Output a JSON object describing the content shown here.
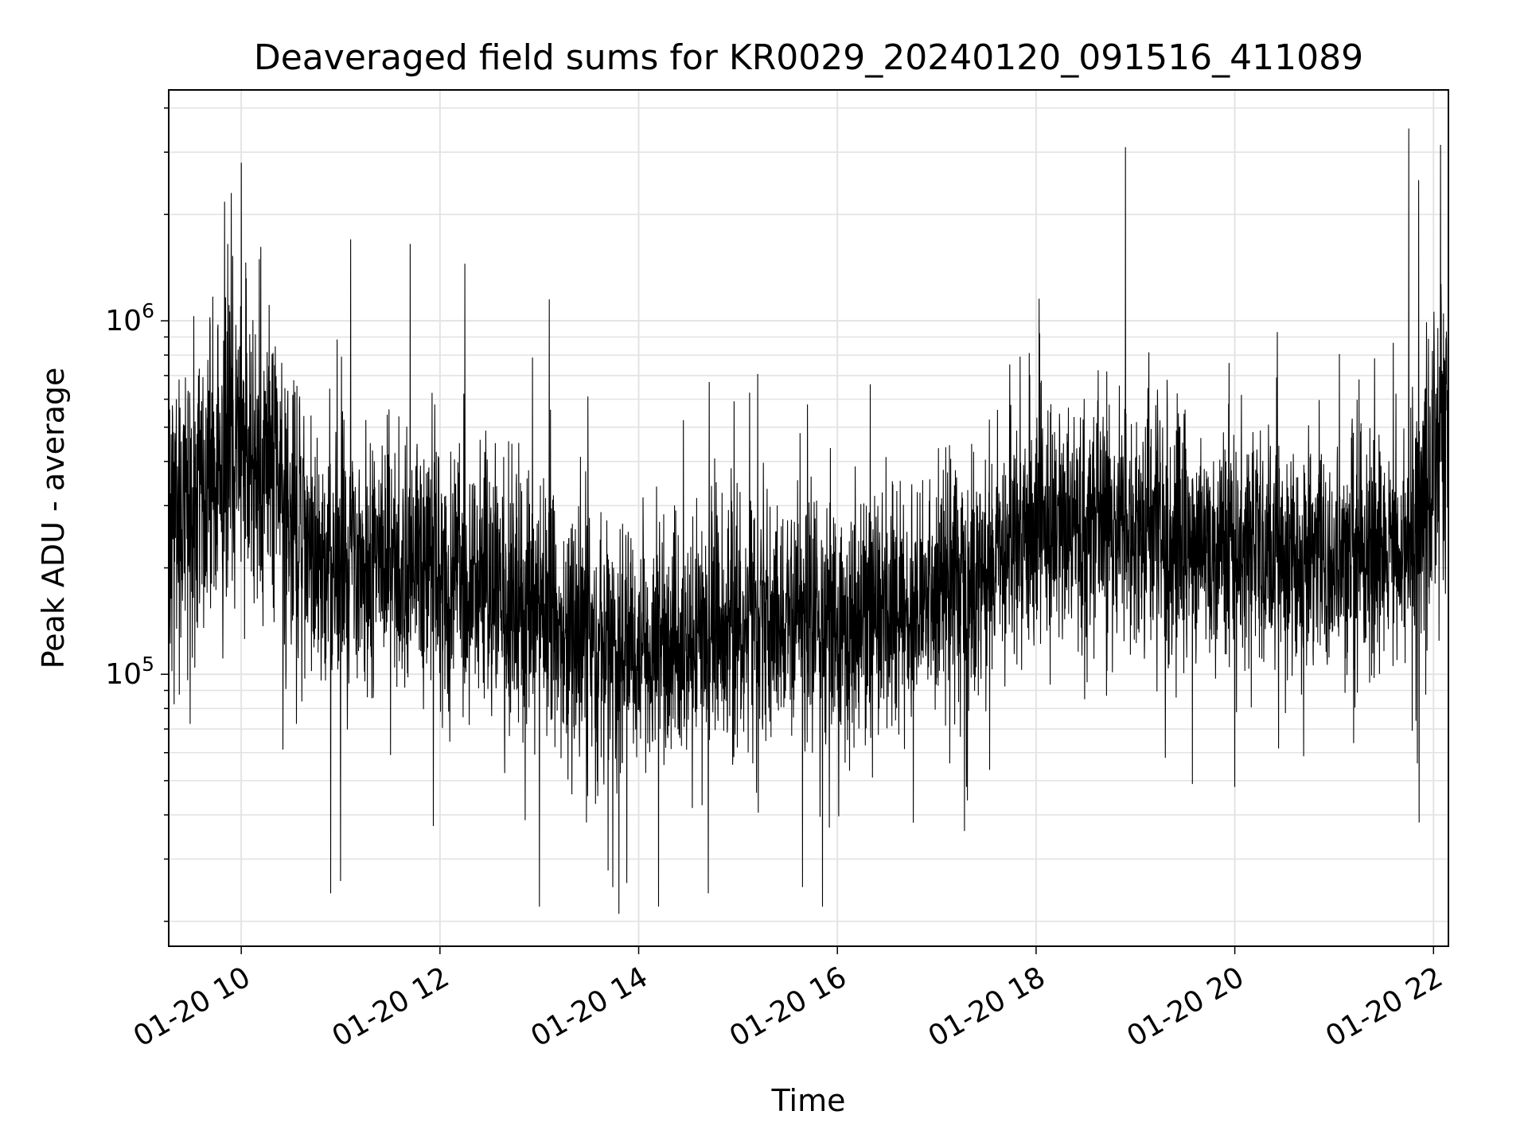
{
  "chart_data": {
    "type": "line",
    "title": "Deaveraged field sums for KR0029_20240120_091516_411089",
    "xlabel": "Time",
    "ylabel": "Peak ADU - average",
    "y_scale": "log",
    "grid": true,
    "legend": "none",
    "line_color": "#000000",
    "x_range_hours": [
      9.27,
      22.15
    ],
    "ylim": [
      17000,
      4500000
    ],
    "x_ticks": [
      {
        "value": 10,
        "label": "01-20 10"
      },
      {
        "value": 12,
        "label": "01-20 12"
      },
      {
        "value": 14,
        "label": "01-20 14"
      },
      {
        "value": 16,
        "label": "01-20 16"
      },
      {
        "value": 18,
        "label": "01-20 18"
      },
      {
        "value": 20,
        "label": "01-20 20"
      },
      {
        "value": 22,
        "label": "01-20 22"
      }
    ],
    "y_ticks": [
      {
        "value": 100000,
        "base": "10",
        "exp": "5"
      },
      {
        "value": 1000000,
        "base": "10",
        "exp": "6"
      }
    ],
    "series": [
      {
        "type": "trend_baseline",
        "x": [
          9.27,
          9.5,
          9.75,
          10.0,
          10.3,
          10.6,
          11.0,
          11.5,
          12.0,
          12.5,
          13.0,
          13.5,
          14.0,
          14.5,
          15.0,
          15.5,
          16.0,
          16.5,
          17.0,
          17.5,
          18.0,
          18.5,
          19.0,
          19.5,
          20.0,
          20.5,
          21.0,
          21.5,
          21.8,
          22.0,
          22.15
        ],
        "y": [
          260000,
          300000,
          380000,
          450000,
          400000,
          220000,
          200000,
          210000,
          190000,
          170000,
          150000,
          120000,
          115000,
          125000,
          140000,
          150000,
          135000,
          140000,
          170000,
          200000,
          260000,
          270000,
          250000,
          240000,
          220000,
          210000,
          210000,
          220000,
          240000,
          420000,
          420000
        ]
      },
      {
        "type": "peaks",
        "x": [
          9.9,
          10.0,
          11.1,
          11.7,
          12.25,
          13.1,
          15.7,
          18.9,
          21.75,
          21.85,
          22.1
        ],
        "y": [
          2300000,
          2800000,
          1700000,
          1650000,
          1450000,
          1150000,
          580000,
          3100000,
          3500000,
          2500000,
          1050000
        ]
      },
      {
        "type": "troughs",
        "x": [
          10.9,
          11.0,
          13.0,
          13.8,
          14.2,
          14.7,
          15.65,
          15.85,
          17.3,
          19.3,
          20.0,
          22.15
        ],
        "y": [
          24000,
          26000,
          22000,
          21000,
          22000,
          24000,
          25000,
          22000,
          48000,
          58000,
          48000,
          40000
        ]
      }
    ]
  }
}
